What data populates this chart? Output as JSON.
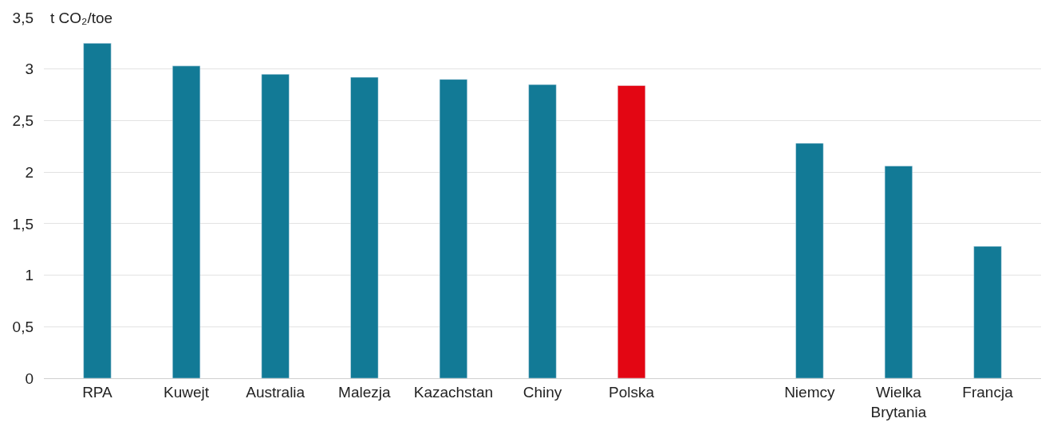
{
  "chart_data": {
    "type": "bar",
    "ylabel": "t CO₂/toe",
    "categories": [
      "RPA",
      "Kuwejt",
      "Australia",
      "Malezja",
      "Kazachstan",
      "Chiny",
      "Polska",
      null,
      "Niemcy",
      "Wielka Brytania",
      "Francja"
    ],
    "values": [
      3.25,
      3.03,
      2.95,
      2.92,
      2.9,
      2.85,
      2.84,
      null,
      2.28,
      2.06,
      1.28
    ],
    "colors": [
      "#127a96",
      "#127a96",
      "#127a96",
      "#127a96",
      "#127a96",
      "#127a96",
      "#e30613",
      null,
      "#127a96",
      "#127a96",
      "#127a96"
    ],
    "ylim": [
      0,
      3.5
    ],
    "yticks": [
      0,
      {
        "value": 0.5,
        "label": "0,5"
      },
      1,
      {
        "value": 1.5,
        "label": "1,5"
      },
      2,
      {
        "value": 2.5,
        "label": "2,5"
      },
      3,
      {
        "value": 3.5,
        "label": "3,5"
      }
    ],
    "grid": "y"
  }
}
